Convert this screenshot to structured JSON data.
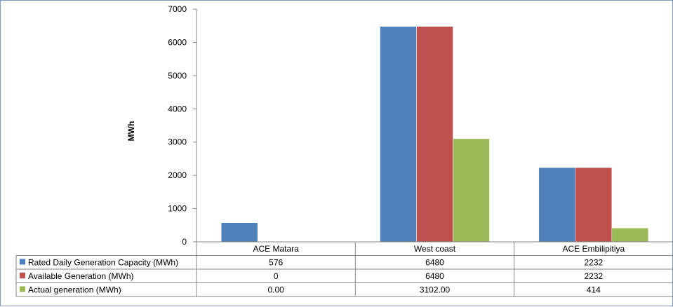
{
  "chart_data": {
    "type": "bar",
    "title": "",
    "xlabel": "",
    "ylabel": "MWh",
    "ylim": [
      0,
      7000
    ],
    "yticks": [
      0,
      1000,
      2000,
      3000,
      4000,
      5000,
      6000,
      7000
    ],
    "grid": false,
    "legend": "data-table-left",
    "categories": [
      "ACE Matara",
      "West coast",
      "ACE Embilipitiya"
    ],
    "series": [
      {
        "name": "Rated Daily Generation Capacity (MWh)",
        "color": "#4f81bd",
        "values": [
          576,
          6480,
          2232
        ],
        "labels": [
          "576",
          "6480",
          "2232"
        ]
      },
      {
        "name": "Available Generation (MWh)",
        "color": "#c0504d",
        "values": [
          0,
          6480,
          2232
        ],
        "labels": [
          "0",
          "6480",
          "2232"
        ]
      },
      {
        "name": "Actual generation (MWh)",
        "color": "#9bbb59",
        "values": [
          0.0,
          3102.0,
          414
        ],
        "labels": [
          "0.00",
          "3102.00",
          "414"
        ]
      }
    ]
  }
}
